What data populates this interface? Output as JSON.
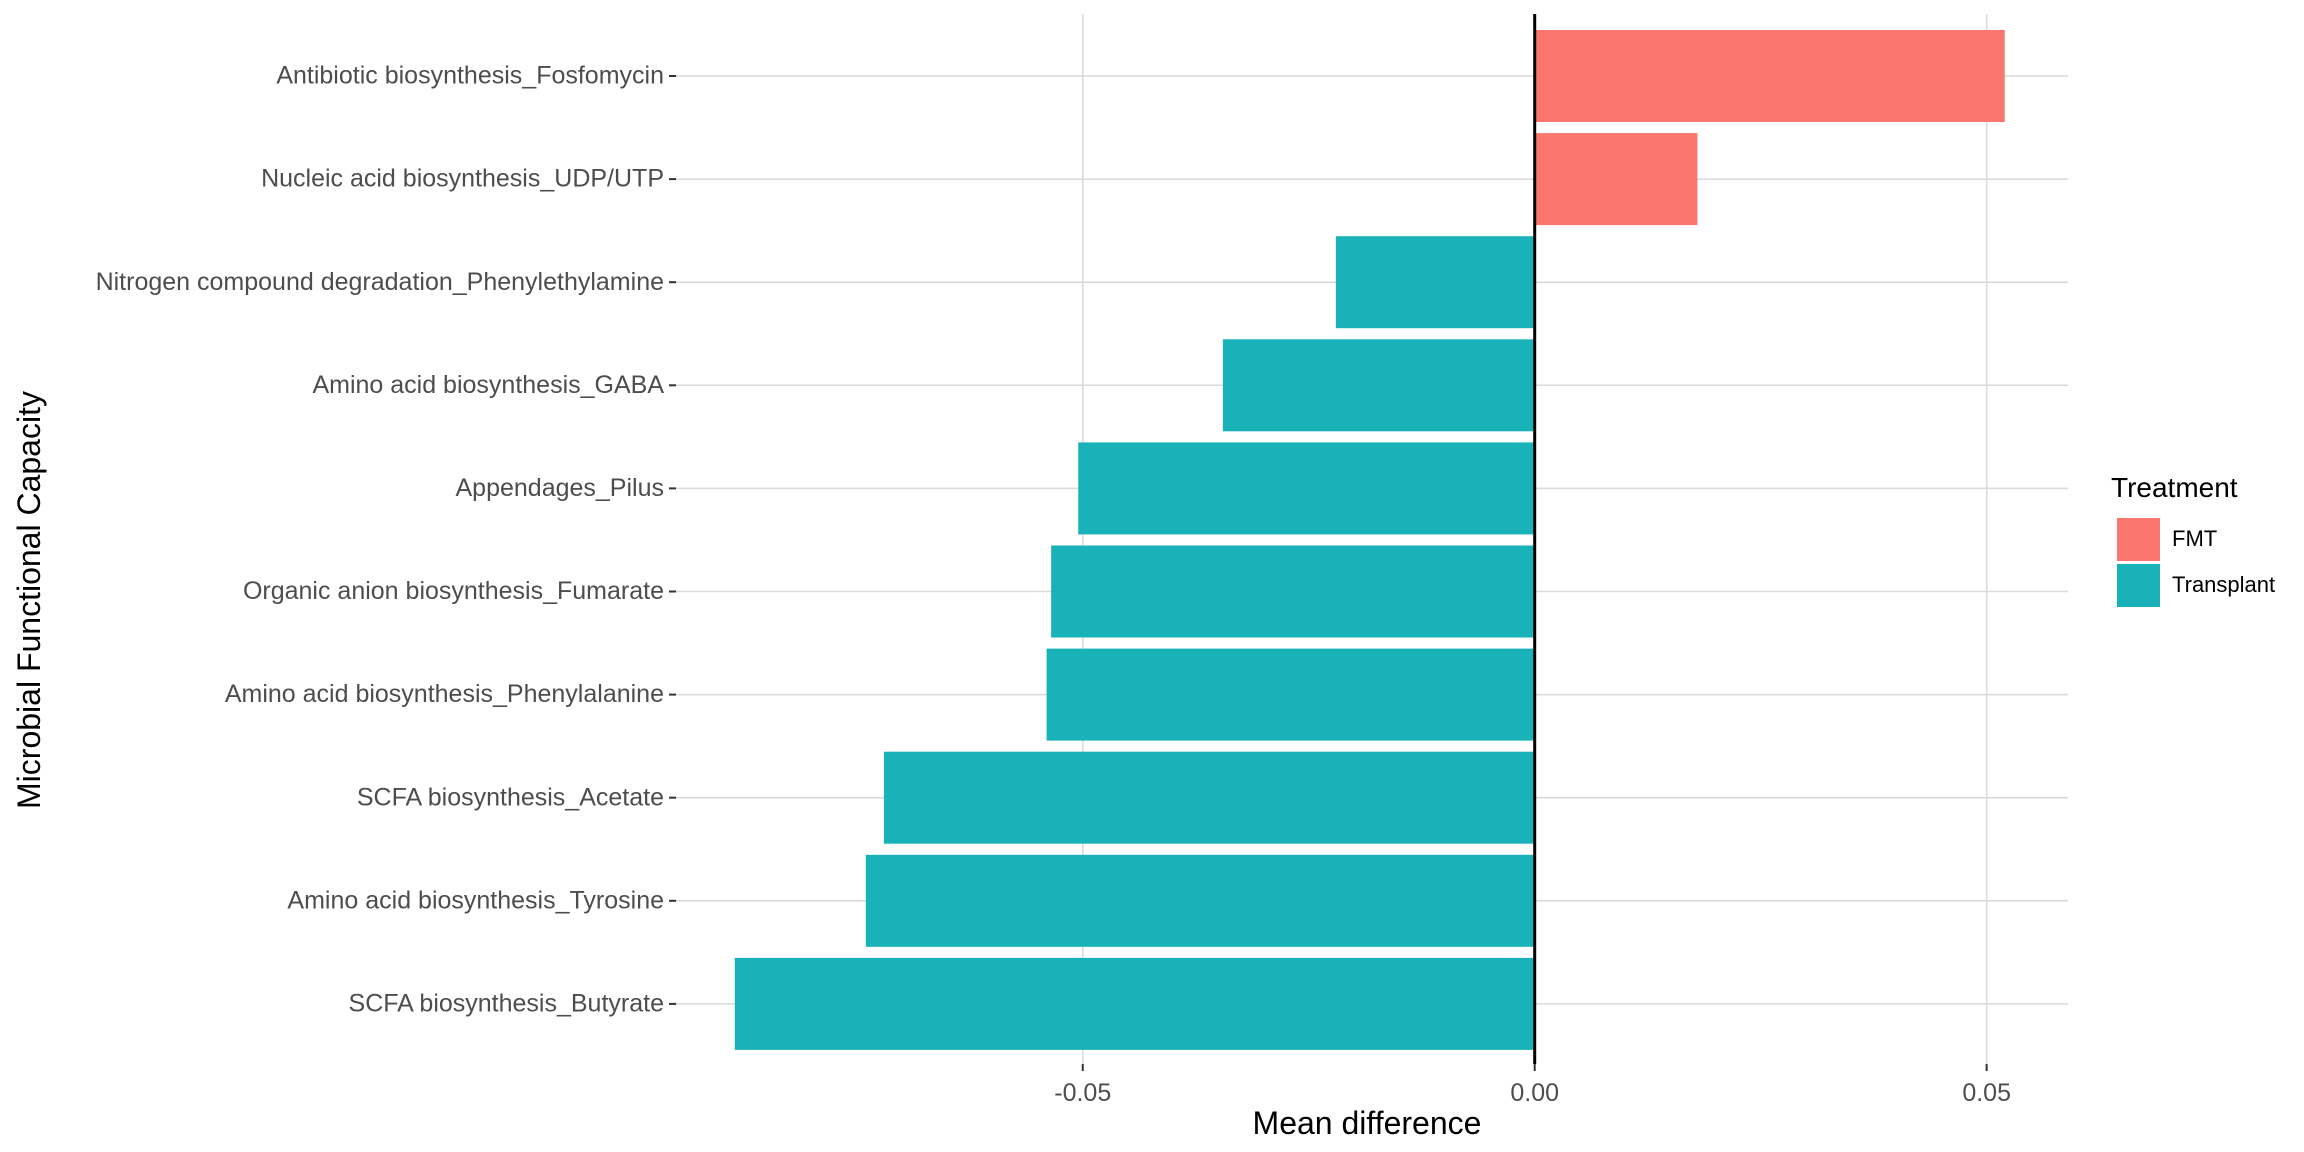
{
  "chart_data": {
    "type": "bar",
    "orientation": "horizontal",
    "xlabel": "Mean difference",
    "ylabel": "Microbial Functional Capacity",
    "xlim": [
      -0.095,
      0.059
    ],
    "x_ticks": [
      -0.05,
      0.0,
      0.05
    ],
    "x_tick_labels": [
      "-0.05",
      "0.00",
      "0.05"
    ],
    "grid": true,
    "legend": {
      "title": "Treatment",
      "position": "right",
      "entries": [
        {
          "label": "FMT",
          "color": "#F8766D"
        },
        {
          "label": "Transplant",
          "color": "#19B2B8"
        }
      ]
    },
    "categories": [
      "Antibiotic biosynthesis_Fosfomycin",
      "Nucleic acid biosynthesis_UDP/UTP",
      "Nitrogen compound degradation_Phenylethylamine",
      "Amino acid biosynthesis_GABA",
      "Appendages_Pilus",
      "Organic anion biosynthesis_Fumarate",
      "Amino acid biosynthesis_Phenylalanine",
      "SCFA biosynthesis_Acetate",
      "Amino acid biosynthesis_Tyrosine",
      "SCFA biosynthesis_Butyrate"
    ],
    "values": [
      0.052,
      0.018,
      -0.022,
      -0.0345,
      -0.0505,
      -0.0535,
      -0.054,
      -0.072,
      -0.074,
      -0.0885
    ],
    "groups": [
      "FMT",
      "FMT",
      "Transplant",
      "Transplant",
      "Transplant",
      "Transplant",
      "Transplant",
      "Transplant",
      "Transplant",
      "Transplant"
    ]
  }
}
